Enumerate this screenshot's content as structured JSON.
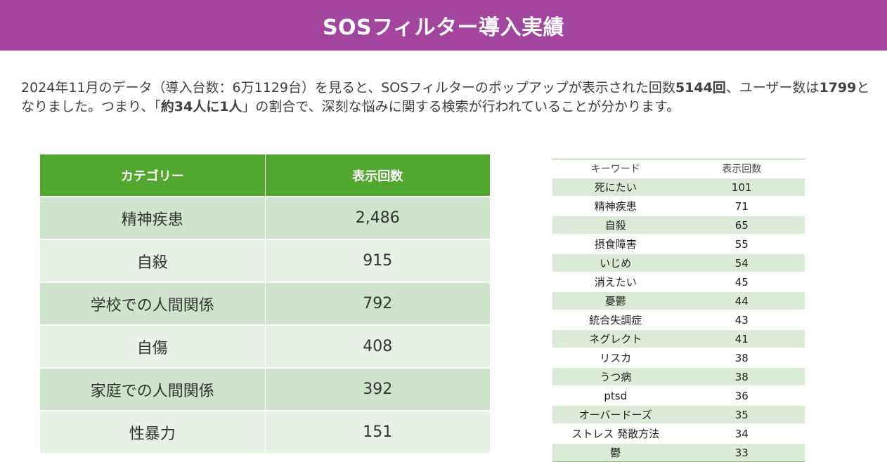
{
  "header": {
    "title": "SOSフィルター導入実績"
  },
  "intro": {
    "p1": "2024年11月のデータ（導入台数：6万1129台）を見ると、SOSフィルターのポップアップが表示された回数",
    "b1": "5144回",
    "p2": "、ユーザー数は",
    "b2": "1799",
    "p3": "となりました。つまり、「",
    "b3": "約34人に1人",
    "p4": "」の割合で、深刻な悩みに関する検索が行われていることが分かります。"
  },
  "category_table": {
    "headers": [
      "カテゴリー",
      "表示回数"
    ],
    "rows": [
      {
        "category": "精神疾患",
        "count": "2,486"
      },
      {
        "category": "自殺",
        "count": "915"
      },
      {
        "category": "学校での人間関係",
        "count": "792"
      },
      {
        "category": "自傷",
        "count": "408"
      },
      {
        "category": "家庭での人間関係",
        "count": "392"
      },
      {
        "category": "性暴力",
        "count": "151"
      }
    ]
  },
  "keyword_table": {
    "headers": [
      "キーワード",
      "表示回数"
    ],
    "rows": [
      {
        "keyword": "死にたい",
        "count": "101"
      },
      {
        "keyword": "精神疾患",
        "count": "71"
      },
      {
        "keyword": "自殺",
        "count": "65"
      },
      {
        "keyword": "摂食障害",
        "count": "55"
      },
      {
        "keyword": "いじめ",
        "count": "54"
      },
      {
        "keyword": "消えたい",
        "count": "45"
      },
      {
        "keyword": "憂鬱",
        "count": "44"
      },
      {
        "keyword": "統合失調症",
        "count": "43"
      },
      {
        "keyword": "ネグレクト",
        "count": "41"
      },
      {
        "keyword": "リスカ",
        "count": "38"
      },
      {
        "keyword": "うつ病",
        "count": "38"
      },
      {
        "keyword": "ptsd",
        "count": "36"
      },
      {
        "keyword": "オーバードーズ",
        "count": "35"
      },
      {
        "keyword": "ストレス 発散方法",
        "count": "34"
      },
      {
        "keyword": "鬱",
        "count": "33"
      }
    ]
  },
  "colors": {
    "header_bg": "#a3449e",
    "table_header_bg": "#52a72e",
    "row_odd": "#d0e3cd",
    "row_even": "#e8f1e6"
  }
}
